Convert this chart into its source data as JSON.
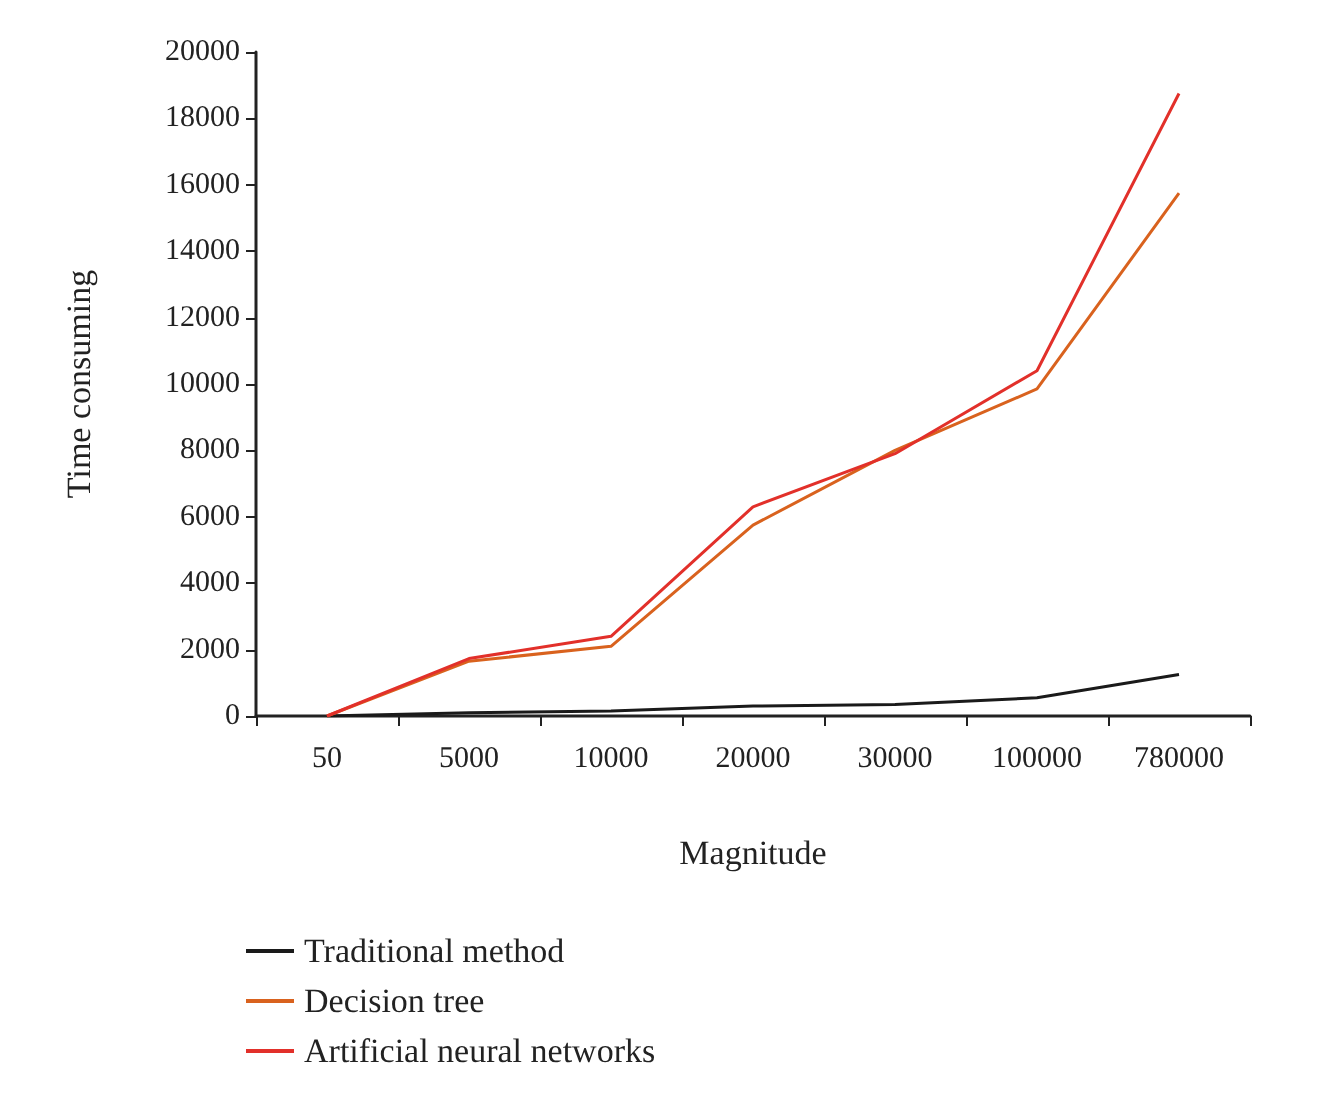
{
  "chart_data": {
    "type": "line",
    "xlabel": "Magnitude",
    "ylabel": "Time consuming",
    "categories": [
      "50",
      "5000",
      "10000",
      "20000",
      "30000",
      "100000",
      "780000"
    ],
    "series": [
      {
        "name": "Traditional method",
        "color": "#1a1a1a",
        "values": [
          0,
          100,
          150,
          300,
          350,
          550,
          1250
        ]
      },
      {
        "name": "Decision tree",
        "color": "#d9621e",
        "values": [
          0,
          1650,
          2100,
          5750,
          8000,
          9850,
          15750
        ]
      },
      {
        "name": "Artificial neural networks",
        "color": "#e2302a",
        "values": [
          0,
          1730,
          2400,
          6300,
          7900,
          10400,
          18750
        ]
      }
    ],
    "ylim": [
      0,
      20000
    ],
    "yticks": [
      0,
      2000,
      4000,
      6000,
      8000,
      10000,
      12000,
      14000,
      16000,
      18000,
      20000
    ],
    "grid": false,
    "legend": "bottom",
    "marker": "none",
    "line_style": "solid"
  }
}
